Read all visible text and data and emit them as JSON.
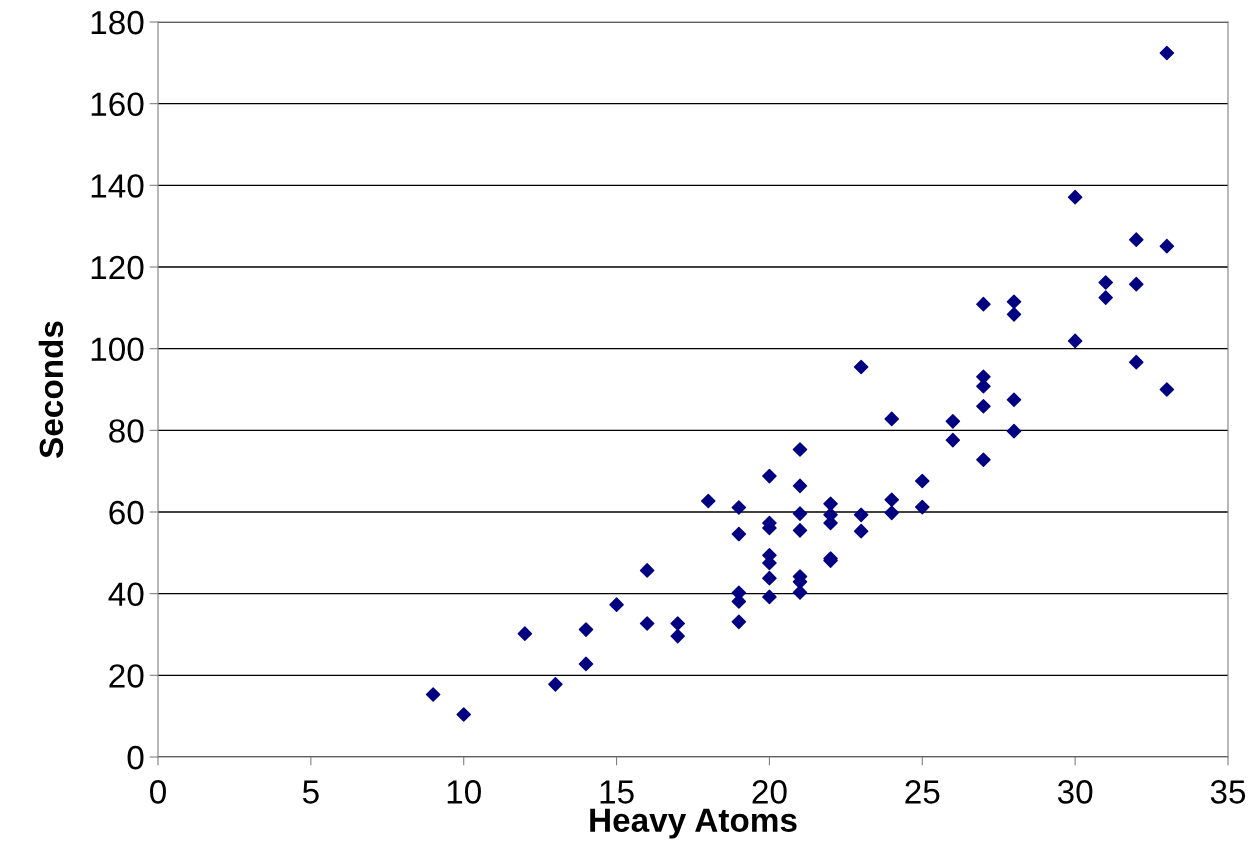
{
  "chart_data": {
    "type": "scatter",
    "xlabel": "Heavy Atoms",
    "ylabel": "Seconds",
    "xlim": [
      0,
      35
    ],
    "xticks": [
      0,
      5,
      10,
      15,
      20,
      25,
      30,
      35
    ],
    "ylim": [
      0,
      180
    ],
    "yticks": [
      0,
      20,
      40,
      60,
      80,
      100,
      120,
      140,
      160,
      180
    ],
    "grid": "y",
    "marker": "diamond",
    "series": [
      {
        "color": "#000080",
        "x": [
          9,
          10,
          12,
          13,
          14,
          14,
          15,
          16,
          16,
          17,
          17,
          18,
          19,
          19,
          19,
          19,
          19,
          20,
          20,
          20,
          20,
          20,
          20,
          20,
          21,
          21,
          21,
          21,
          21,
          21,
          21,
          22,
          22,
          22,
          22,
          22,
          23,
          23,
          23,
          24,
          24,
          24,
          25,
          25,
          26,
          26,
          27,
          27,
          27,
          27,
          27,
          28,
          28,
          28,
          28,
          30,
          30,
          31,
          31,
          32,
          32,
          32,
          33,
          33,
          33
        ],
        "values": [
          15.3,
          10.4,
          30.2,
          17.8,
          31.2,
          22.8,
          37.3,
          45.7,
          32.7,
          32.7,
          29.6,
          62.7,
          61.1,
          54.6,
          40.2,
          38.1,
          33.1,
          68.8,
          57.3,
          56.1,
          49.4,
          47.5,
          43.8,
          39.2,
          75.3,
          66.4,
          59.6,
          55.5,
          44.2,
          42.9,
          40.3,
          62.0,
          59.3,
          57.3,
          48.6,
          48.1,
          95.5,
          59.3,
          55.3,
          82.8,
          63.0,
          59.8,
          67.6,
          61.2,
          82.2,
          77.6,
          110.9,
          93.1,
          90.8,
          85.9,
          72.8,
          111.5,
          108.4,
          87.5,
          79.8,
          137.1,
          101.9,
          116.2,
          112.5,
          126.7,
          115.8,
          96.7,
          172.4,
          125.1,
          90.0
        ]
      }
    ]
  }
}
